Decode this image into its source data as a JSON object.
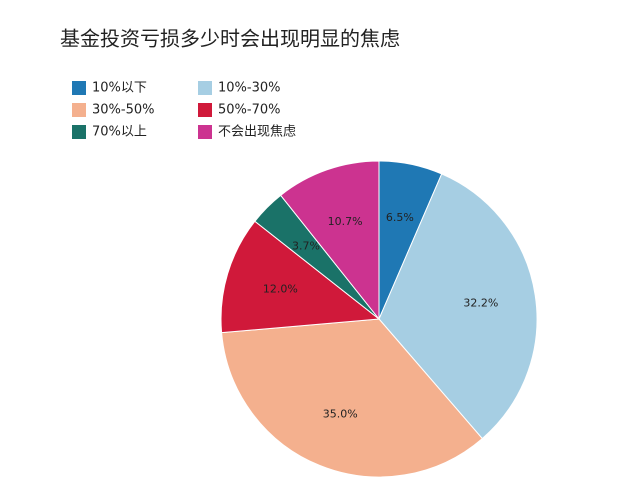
{
  "chart_data": {
    "type": "pie",
    "title": "基金投资亏损多少时会出现明显的焦虑",
    "categories": [
      "10%以下",
      "10%-30%",
      "30%-50%",
      "50%-70%",
      "70%以上",
      "不会出现焦虑"
    ],
    "values": [
      6.5,
      32.2,
      35.0,
      12.0,
      3.7,
      10.7
    ],
    "value_labels": [
      "6.5%",
      "32.2%",
      "35.0%",
      "12.0%",
      "3.7%",
      "10.7%"
    ],
    "colors": [
      "#1f78b4",
      "#a6cee3",
      "#f4b08e",
      "#d0193a",
      "#1a7268",
      "#cc3390"
    ]
  }
}
